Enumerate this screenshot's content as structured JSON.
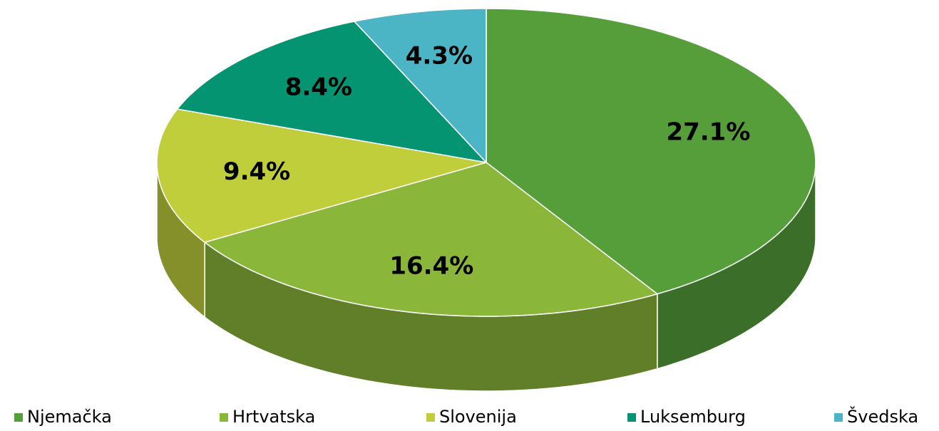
{
  "chart_data": {
    "type": "pie",
    "categories": [
      "Njemačka",
      "Hrtvatska",
      "Slovenija",
      "Luksemburg",
      "Švedska"
    ],
    "values": [
      27.1,
      16.4,
      9.4,
      8.4,
      4.3
    ],
    "value_labels": [
      "27.1%",
      "16.4%",
      "9.4%",
      "8.4%",
      "4.3%"
    ],
    "colors": [
      "#559e3a",
      "#8ab63a",
      "#c0ce3c",
      "#049472",
      "#4bb5c5"
    ],
    "legend": "bottom"
  }
}
